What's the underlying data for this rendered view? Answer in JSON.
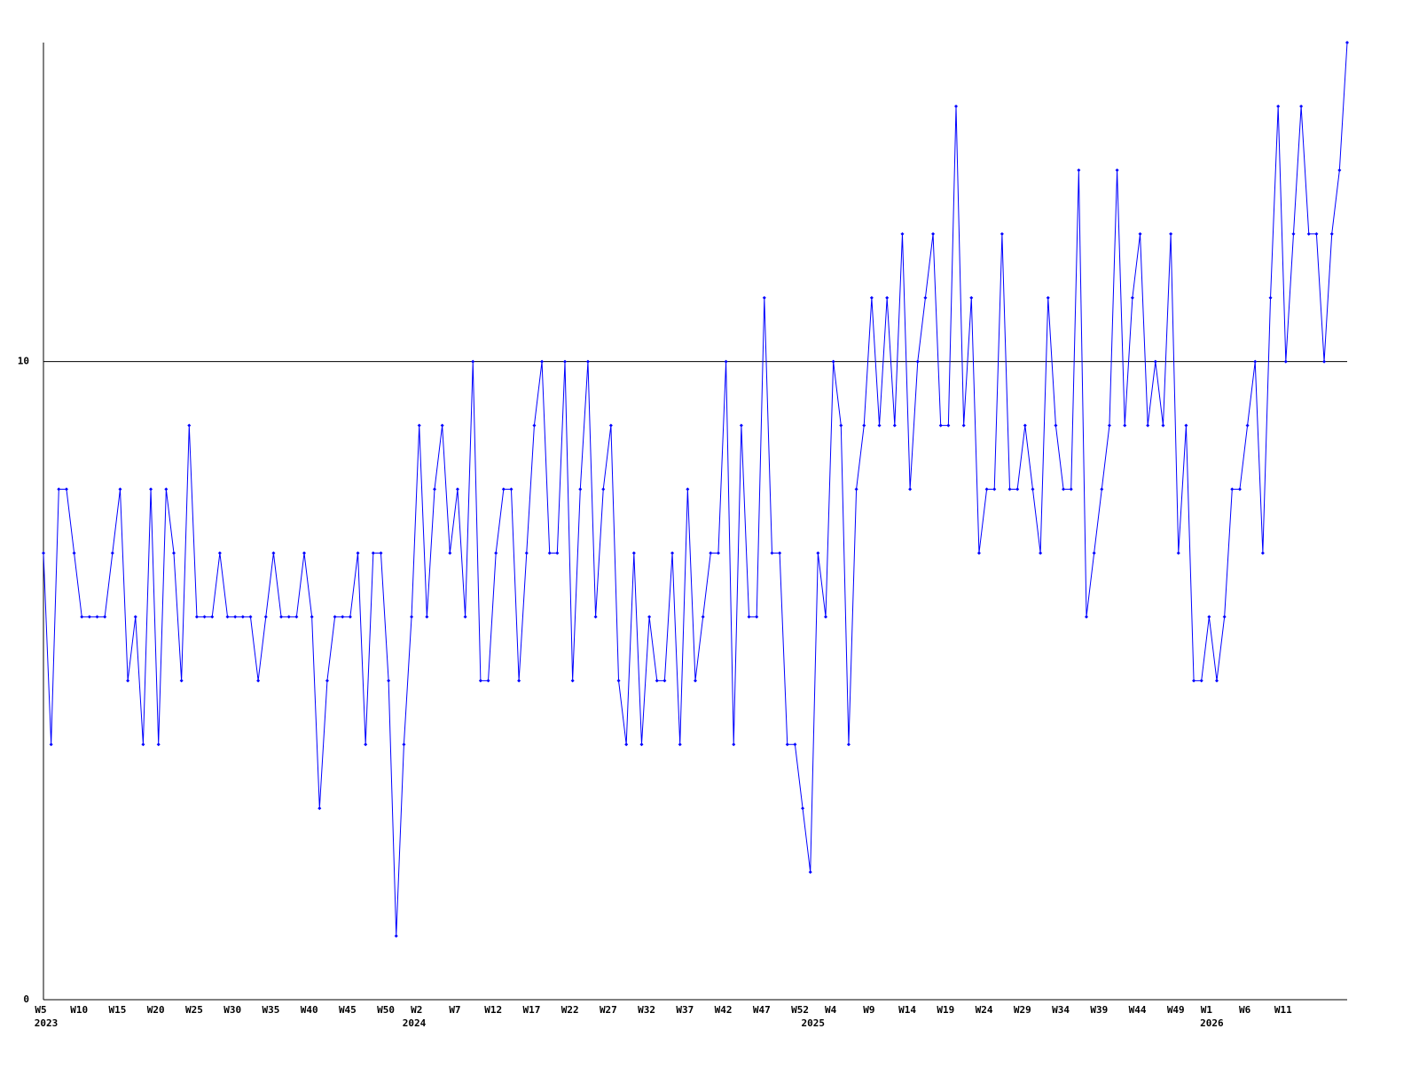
{
  "chart_data": {
    "type": "line",
    "categories": [
      "W5",
      null,
      null,
      null,
      null,
      "W10",
      null,
      null,
      null,
      null,
      "W15",
      null,
      null,
      null,
      null,
      "W20",
      null,
      null,
      null,
      null,
      "W25",
      null,
      null,
      null,
      null,
      "W30",
      null,
      null,
      null,
      null,
      "W35",
      null,
      null,
      null,
      null,
      "W40",
      null,
      null,
      null,
      null,
      "W45",
      null,
      null,
      null,
      null,
      "W50",
      null,
      null,
      null,
      "W2",
      null,
      null,
      null,
      null,
      "W7",
      null,
      null,
      null,
      null,
      "W12",
      null,
      null,
      null,
      null,
      "W17",
      null,
      null,
      null,
      null,
      "W22",
      null,
      null,
      null,
      null,
      "W27",
      null,
      null,
      null,
      null,
      "W32",
      null,
      null,
      null,
      null,
      "W37",
      null,
      null,
      null,
      null,
      "W42",
      null,
      null,
      null,
      null,
      "W47",
      null,
      null,
      null,
      null,
      "W52",
      null,
      null,
      null,
      "W4",
      null,
      null,
      null,
      null,
      "W9",
      null,
      null,
      null,
      null,
      "W14",
      null,
      null,
      null,
      null,
      "W19",
      null,
      null,
      null,
      null,
      "W24",
      null,
      null,
      null,
      null,
      "W29",
      null,
      null,
      null,
      null,
      "W34",
      null,
      null,
      null,
      null,
      "W39",
      null,
      null,
      null,
      null,
      "W44",
      null,
      null,
      null,
      null,
      "W49",
      null,
      null,
      null,
      "W1",
      null,
      null,
      null,
      null,
      "W6",
      null,
      null,
      null,
      null,
      "W11",
      null,
      null,
      null,
      null,
      null,
      null,
      null,
      null
    ],
    "year_labels": [
      "2023",
      null,
      null,
      null,
      null,
      null,
      null,
      null,
      null,
      null,
      null,
      null,
      null,
      null,
      null,
      null,
      null,
      null,
      null,
      null,
      null,
      null,
      null,
      null,
      null,
      null,
      null,
      null,
      null,
      null,
      null,
      null,
      null,
      null,
      null,
      null,
      null,
      null,
      null,
      null,
      null,
      null,
      null,
      null,
      null,
      null,
      null,
      null,
      "2024",
      null,
      null,
      null,
      null,
      null,
      null,
      null,
      null,
      null,
      null,
      null,
      null,
      null,
      null,
      null,
      null,
      null,
      null,
      null,
      null,
      null,
      null,
      null,
      null,
      null,
      null,
      null,
      null,
      null,
      null,
      null,
      null,
      null,
      null,
      null,
      null,
      null,
      null,
      null,
      null,
      null,
      null,
      null,
      null,
      null,
      null,
      null,
      null,
      null,
      null,
      null,
      "2025",
      null,
      null,
      null,
      null,
      null,
      null,
      null,
      null,
      null,
      null,
      null,
      null,
      null,
      null,
      null,
      null,
      null,
      null,
      null,
      null,
      null,
      null,
      null,
      null,
      null,
      null,
      null,
      null,
      null,
      null,
      null,
      null,
      null,
      null,
      null,
      null,
      null,
      null,
      null,
      null,
      null,
      null,
      null,
      null,
      null,
      null,
      null,
      null,
      null,
      null,
      null,
      "2026",
      null,
      null,
      null,
      null,
      null,
      null,
      null,
      null,
      null,
      null,
      null,
      null,
      null,
      null,
      null,
      null,
      null,
      null
    ],
    "series": [
      {
        "color": "#0000ff",
        "values": [
          7,
          4,
          8,
          8,
          7,
          6,
          6,
          6,
          6,
          7,
          8,
          5,
          6,
          4,
          8,
          4,
          8,
          7,
          5,
          9,
          6,
          6,
          6,
          7,
          6,
          6,
          6,
          6,
          5,
          6,
          7,
          6,
          6,
          6,
          7,
          6,
          3,
          5,
          6,
          6,
          6,
          7,
          4,
          7,
          7,
          5,
          1,
          4,
          6,
          9,
          6,
          8,
          9,
          7,
          8,
          6,
          10,
          5,
          5,
          7,
          8,
          8,
          5,
          7,
          9,
          10,
          7,
          7,
          10,
          5,
          8,
          10,
          6,
          8,
          9,
          5,
          4,
          7,
          4,
          6,
          5,
          5,
          7,
          4,
          8,
          5,
          6,
          7,
          7,
          10,
          4,
          9,
          6,
          6,
          11,
          7,
          7,
          4,
          4,
          3,
          2,
          7,
          6,
          10,
          9,
          4,
          8,
          9,
          11,
          9,
          11,
          9,
          12,
          8,
          10,
          11,
          12,
          9,
          9,
          14,
          9,
          11,
          7,
          8,
          8,
          12,
          8,
          8,
          9,
          8,
          7,
          11,
          9,
          8,
          8,
          13,
          6,
          7,
          8,
          9,
          13,
          9,
          11,
          12,
          9,
          10,
          9,
          12,
          7,
          9,
          5,
          5,
          6,
          5,
          6,
          8,
          8,
          9,
          10,
          7,
          11,
          14,
          10,
          12,
          14,
          12,
          12,
          10,
          12,
          13,
          15
        ]
      }
    ],
    "ylim": [
      0,
      15
    ],
    "yticks": [
      0,
      10
    ],
    "grid": true
  }
}
